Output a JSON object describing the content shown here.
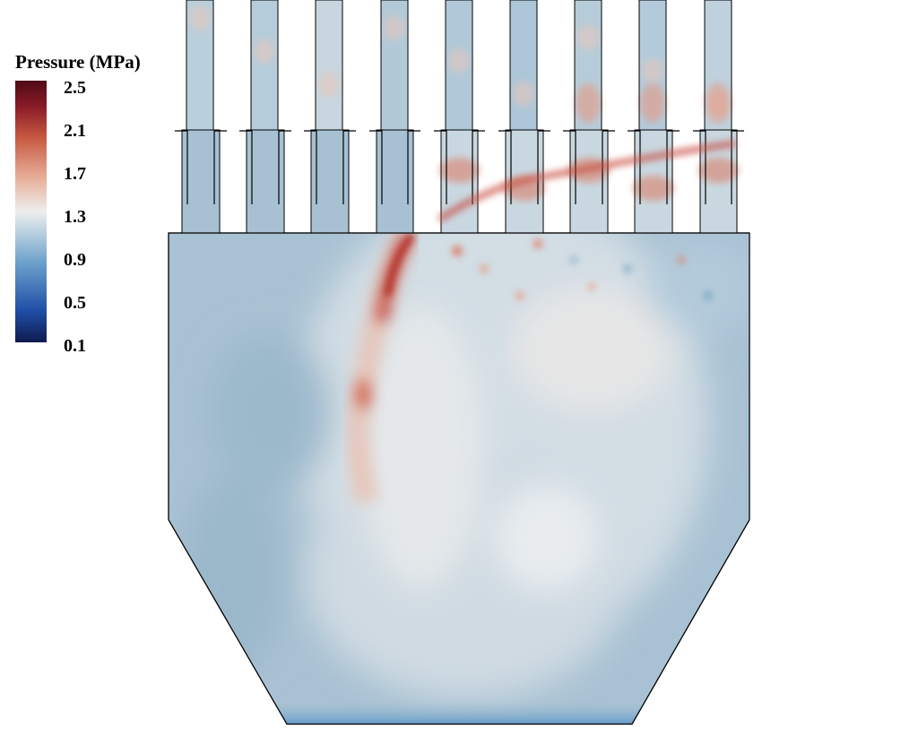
{
  "legend": {
    "title": "Pressure (MPa)",
    "ticks": [
      "2.5",
      "2.1",
      "1.7",
      "1.3",
      "0.9",
      "0.5",
      "0.1"
    ],
    "min": 0.1,
    "max": 2.5,
    "colormap": [
      "#0f1a4f",
      "#1f4fa6",
      "#6a9fcb",
      "#b8d0df",
      "#eeeeee",
      "#e8b39e",
      "#c85a42",
      "#8a1b27",
      "#4e0a16"
    ]
  },
  "colors": {
    "outline": "#000000",
    "base_field": "#a9c2d3",
    "background": "#ffffff"
  },
  "geometry_labels": {
    "injector_count": 9
  }
}
